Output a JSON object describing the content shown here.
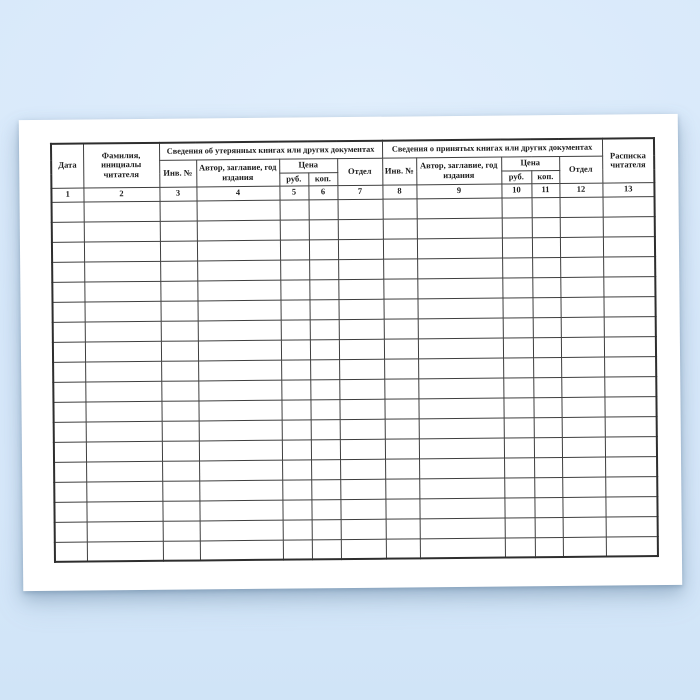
{
  "colors": {
    "background": "#d7e8fa",
    "background_highlight": "#e0eefc",
    "background_deep": "#d0e4f7",
    "paper": "#ffffff",
    "table_border": "#3f3f3f",
    "text": "#1c1c1c"
  },
  "table": {
    "header": {
      "date_label": "Дата",
      "reader_label": "Фамилия, инициалы читателя",
      "lost_group_label": "Сведения об утерянных книгах или других документах",
      "received_group_label": "Сведения о принятых книгах или других документах",
      "inv_no_label": "Инв. №",
      "author_label": "Автор, заглавие, год издания",
      "price_label": "Цена",
      "rub_label": "руб.",
      "kop_label": "коп.",
      "dept_label": "Отдел",
      "receipt_label": "Расписка читателя"
    },
    "column_numbers": [
      "1",
      "2",
      "3",
      "4",
      "5",
      "6",
      "7",
      "8",
      "9",
      "10",
      "11",
      "12",
      "13"
    ],
    "blank_row_count": 18
  }
}
